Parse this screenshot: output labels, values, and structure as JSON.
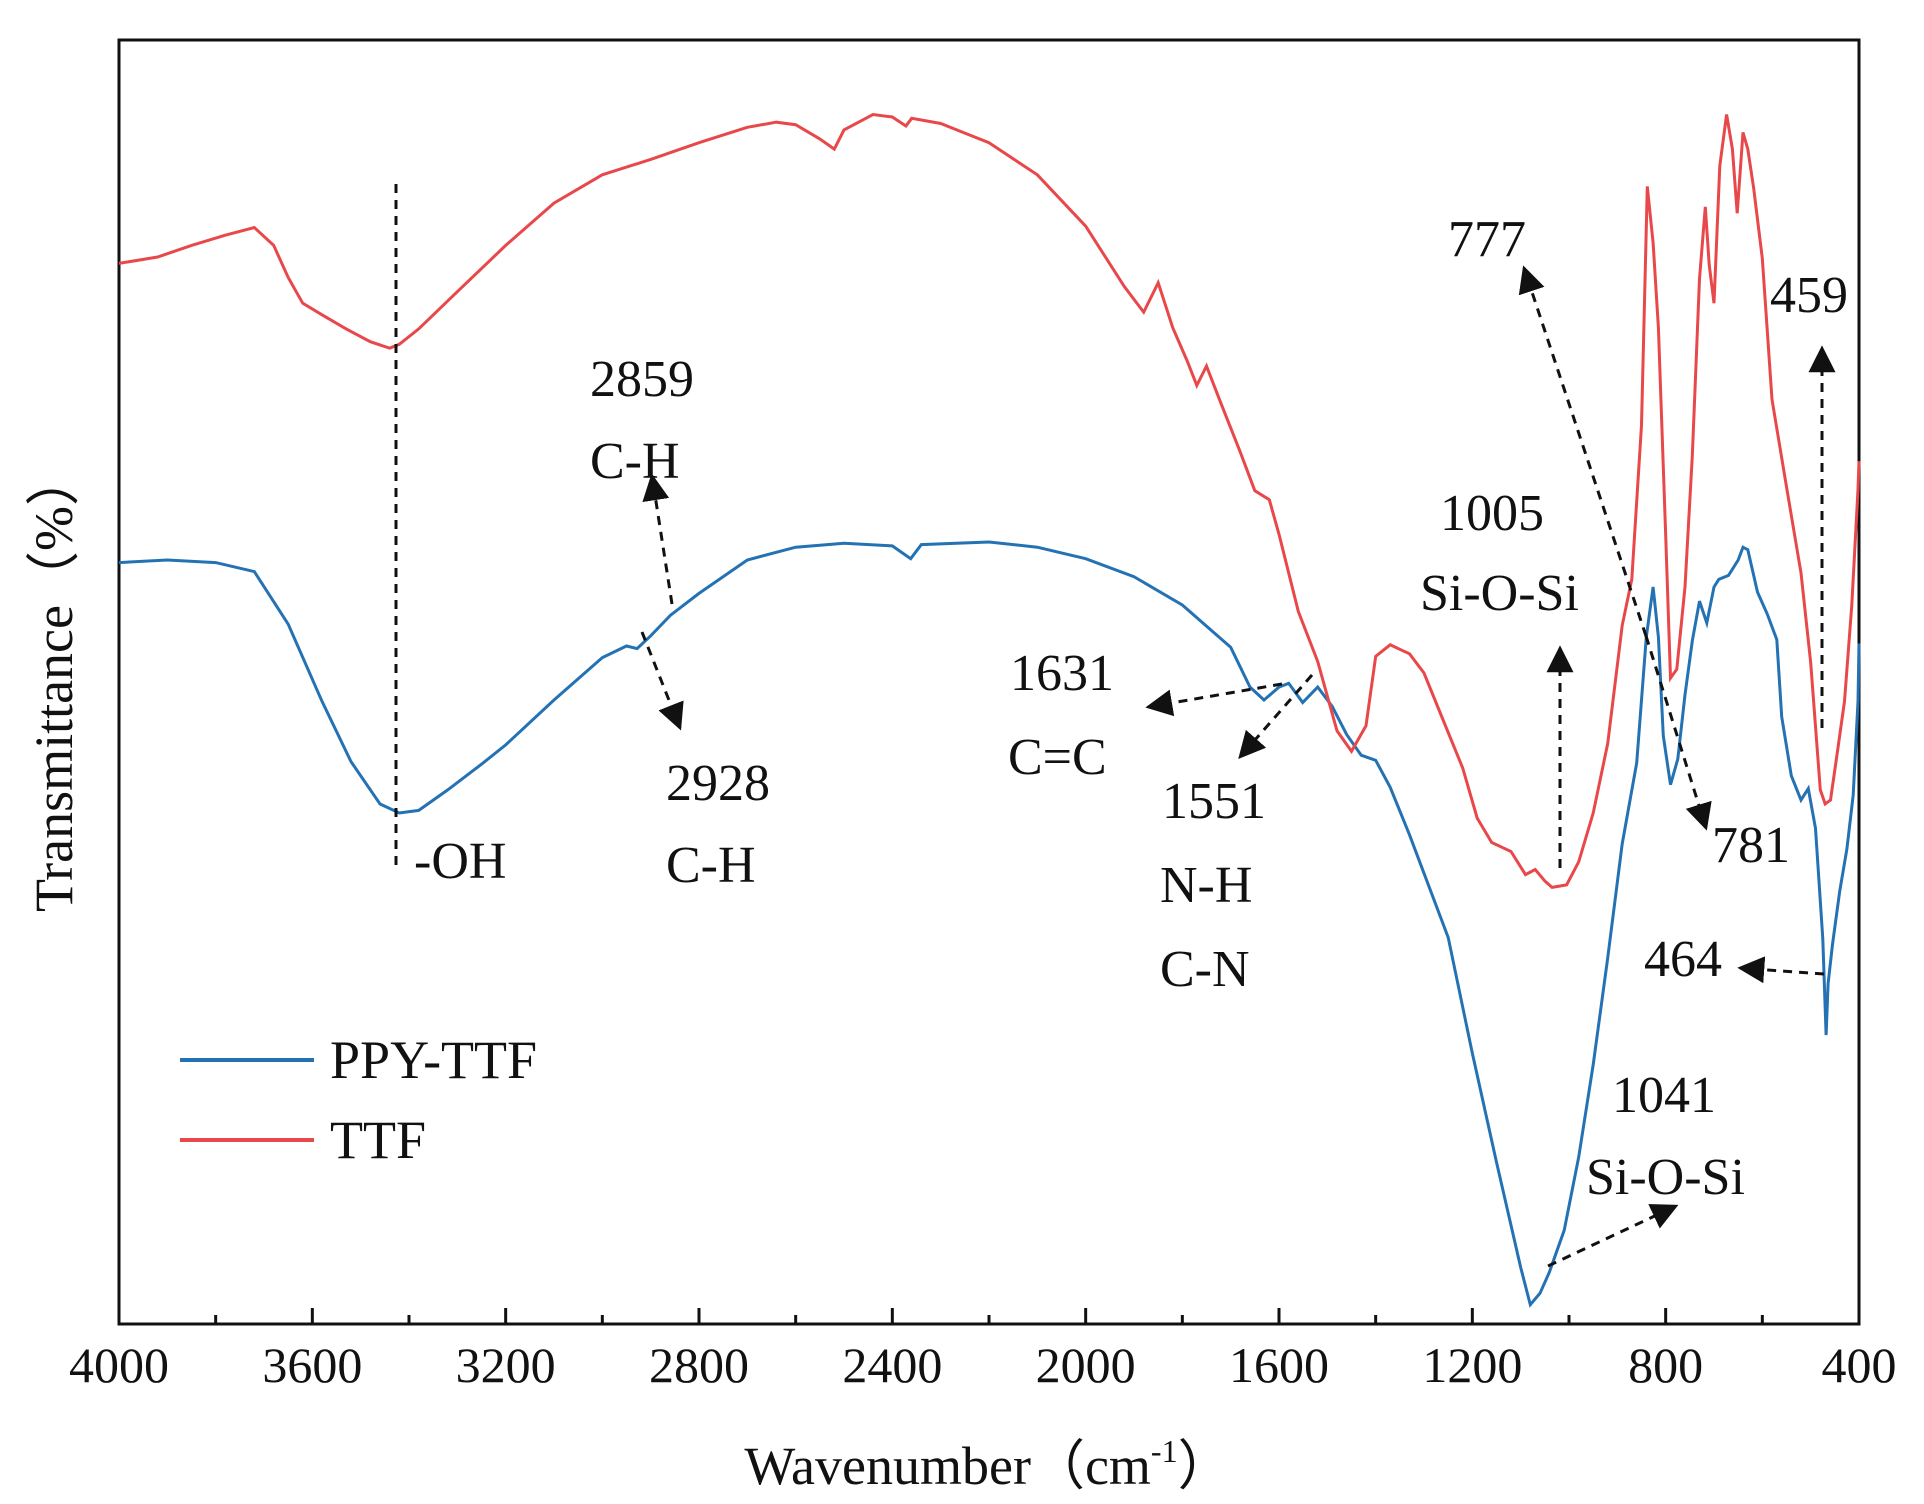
{
  "chart_data": {
    "type": "line",
    "xlabel": "Wavenumber（cm",
    "xlabel_sup": "-1",
    "xlabel_close": "）",
    "ylabel": "Transmittance（%）",
    "xlim": [
      4000,
      400
    ],
    "x_reversed": true,
    "ylim": [
      0,
      100
    ],
    "x_ticks": [
      4000,
      3600,
      3200,
      2800,
      2400,
      2000,
      1600,
      1200,
      800,
      400
    ],
    "legend_position": "lower-left",
    "colors": {
      "ppy_ttf": "#2472b3",
      "ttf": "#e8484a"
    },
    "series": [
      {
        "name": "PPY-TTF",
        "key": "ppy_ttf",
        "points": [
          [
            4000,
            59.3
          ],
          [
            3900,
            59.5
          ],
          [
            3800,
            59.3
          ],
          [
            3720,
            58.6
          ],
          [
            3650,
            54.5
          ],
          [
            3580,
            48.5
          ],
          [
            3520,
            43.8
          ],
          [
            3460,
            40.5
          ],
          [
            3420,
            39.8
          ],
          [
            3380,
            40.0
          ],
          [
            3320,
            41.6
          ],
          [
            3250,
            43.6
          ],
          [
            3200,
            45.1
          ],
          [
            3100,
            48.6
          ],
          [
            3000,
            51.9
          ],
          [
            2950,
            52.8
          ],
          [
            2928,
            52.6
          ],
          [
            2900,
            53.6
          ],
          [
            2859,
            55.2
          ],
          [
            2800,
            56.9
          ],
          [
            2700,
            59.5
          ],
          [
            2600,
            60.5
          ],
          [
            2500,
            60.8
          ],
          [
            2400,
            60.6
          ],
          [
            2362,
            59.6
          ],
          [
            2340,
            60.7
          ],
          [
            2200,
            60.9
          ],
          [
            2100,
            60.5
          ],
          [
            2000,
            59.6
          ],
          [
            1900,
            58.2
          ],
          [
            1800,
            56.0
          ],
          [
            1700,
            52.7
          ],
          [
            1660,
            49.6
          ],
          [
            1631,
            48.6
          ],
          [
            1600,
            49.6
          ],
          [
            1580,
            49.9
          ],
          [
            1551,
            48.4
          ],
          [
            1520,
            49.6
          ],
          [
            1490,
            48.1
          ],
          [
            1460,
            45.9
          ],
          [
            1430,
            44.3
          ],
          [
            1400,
            43.9
          ],
          [
            1370,
            41.8
          ],
          [
            1330,
            38.1
          ],
          [
            1300,
            35.1
          ],
          [
            1250,
            30.1
          ],
          [
            1200,
            21.1
          ],
          [
            1150,
            12.6
          ],
          [
            1100,
            4.4
          ],
          [
            1080,
            1.5
          ],
          [
            1060,
            2.4
          ],
          [
            1041,
            4.0
          ],
          [
            1010,
            7.3
          ],
          [
            980,
            13.0
          ],
          [
            950,
            20.2
          ],
          [
            920,
            28.5
          ],
          [
            890,
            37.4
          ],
          [
            860,
            43.7
          ],
          [
            840,
            53.5
          ],
          [
            826,
            57.4
          ],
          [
            815,
            53.5
          ],
          [
            805,
            45.8
          ],
          [
            790,
            42.0
          ],
          [
            775,
            44.0
          ],
          [
            760,
            49.0
          ],
          [
            745,
            53.2
          ],
          [
            730,
            56.3
          ],
          [
            715,
            54.6
          ],
          [
            700,
            57.4
          ],
          [
            690,
            58.0
          ],
          [
            670,
            58.3
          ],
          [
            650,
            59.5
          ],
          [
            640,
            60.5
          ],
          [
            630,
            60.3
          ],
          [
            610,
            57.0
          ],
          [
            590,
            55.3
          ],
          [
            570,
            53.3
          ],
          [
            560,
            47.3
          ],
          [
            540,
            42.7
          ],
          [
            520,
            40.8
          ],
          [
            505,
            41.7
          ],
          [
            490,
            38.6
          ],
          [
            475,
            30.0
          ],
          [
            468,
            22.5
          ],
          [
            464,
            26.5
          ],
          [
            455,
            29.5
          ],
          [
            440,
            33.7
          ],
          [
            425,
            37.0
          ],
          [
            412,
            41.2
          ],
          [
            402,
            48.5
          ],
          [
            400,
            53.0
          ]
        ]
      },
      {
        "name": "TTF",
        "key": "ttf",
        "points": [
          [
            4000,
            82.6
          ],
          [
            3920,
            83.1
          ],
          [
            3850,
            84.0
          ],
          [
            3780,
            84.8
          ],
          [
            3720,
            85.4
          ],
          [
            3680,
            84.0
          ],
          [
            3650,
            81.5
          ],
          [
            3620,
            79.5
          ],
          [
            3580,
            78.6
          ],
          [
            3530,
            77.5
          ],
          [
            3480,
            76.5
          ],
          [
            3440,
            76.0
          ],
          [
            3420,
            76.3
          ],
          [
            3380,
            77.5
          ],
          [
            3300,
            80.4
          ],
          [
            3200,
            84.0
          ],
          [
            3100,
            87.3
          ],
          [
            3000,
            89.5
          ],
          [
            2900,
            90.7
          ],
          [
            2800,
            92.0
          ],
          [
            2700,
            93.2
          ],
          [
            2640,
            93.6
          ],
          [
            2600,
            93.4
          ],
          [
            2550,
            92.3
          ],
          [
            2520,
            91.5
          ],
          [
            2500,
            93.0
          ],
          [
            2440,
            94.2
          ],
          [
            2400,
            94.0
          ],
          [
            2372,
            93.3
          ],
          [
            2360,
            93.9
          ],
          [
            2300,
            93.5
          ],
          [
            2200,
            92.0
          ],
          [
            2100,
            89.5
          ],
          [
            2000,
            85.5
          ],
          [
            1920,
            80.8
          ],
          [
            1880,
            78.8
          ],
          [
            1850,
            81.1
          ],
          [
            1820,
            77.6
          ],
          [
            1790,
            75.0
          ],
          [
            1770,
            73.1
          ],
          [
            1750,
            74.6
          ],
          [
            1720,
            71.7
          ],
          [
            1680,
            67.9
          ],
          [
            1650,
            64.9
          ],
          [
            1620,
            64.2
          ],
          [
            1600,
            61.5
          ],
          [
            1560,
            55.5
          ],
          [
            1520,
            51.6
          ],
          [
            1480,
            46.2
          ],
          [
            1450,
            44.6
          ],
          [
            1420,
            46.6
          ],
          [
            1400,
            52.0
          ],
          [
            1370,
            52.9
          ],
          [
            1330,
            52.2
          ],
          [
            1300,
            50.7
          ],
          [
            1260,
            47.0
          ],
          [
            1220,
            43.3
          ],
          [
            1190,
            39.4
          ],
          [
            1160,
            37.5
          ],
          [
            1120,
            36.8
          ],
          [
            1090,
            35.0
          ],
          [
            1070,
            35.4
          ],
          [
            1050,
            34.5
          ],
          [
            1035,
            34.0
          ],
          [
            1005,
            34.2
          ],
          [
            980,
            36.0
          ],
          [
            950,
            39.8
          ],
          [
            920,
            45.2
          ],
          [
            890,
            54.4
          ],
          [
            870,
            58.0
          ],
          [
            850,
            70.0
          ],
          [
            838,
            88.6
          ],
          [
            826,
            84.2
          ],
          [
            815,
            77.6
          ],
          [
            800,
            61.4
          ],
          [
            790,
            50.3
          ],
          [
            777,
            51.0
          ],
          [
            760,
            57.4
          ],
          [
            745,
            67.6
          ],
          [
            730,
            81.4
          ],
          [
            718,
            87.0
          ],
          [
            710,
            82.5
          ],
          [
            700,
            79.5
          ],
          [
            688,
            90.2
          ],
          [
            674,
            94.2
          ],
          [
            662,
            91.5
          ],
          [
            652,
            86.5
          ],
          [
            640,
            92.8
          ],
          [
            630,
            91.5
          ],
          [
            618,
            88.5
          ],
          [
            600,
            83.0
          ],
          [
            580,
            72.0
          ],
          [
            550,
            65.2
          ],
          [
            520,
            58.5
          ],
          [
            500,
            51.5
          ],
          [
            480,
            41.6
          ],
          [
            470,
            40.5
          ],
          [
            459,
            40.8
          ],
          [
            445,
            44.5
          ],
          [
            430,
            48.5
          ],
          [
            415,
            56.0
          ],
          [
            402,
            65.0
          ],
          [
            400,
            67.2
          ]
        ]
      }
    ],
    "annotations": {
      "oh": "-OH",
      "c2859": "2859",
      "ch2859": "C-H",
      "c2928": "2928",
      "ch2928": "C-H",
      "c1631": "1631",
      "cc1631": "C=C",
      "c1551": "1551",
      "nh1551": "N-H",
      "cn1551": "C-N",
      "c1005": "1005",
      "si1005": "Si-O-Si",
      "c1041": "1041",
      "si1041": "Si-O-Si",
      "c777": "777",
      "c781": "781",
      "c459": "459",
      "c464": "464"
    }
  }
}
